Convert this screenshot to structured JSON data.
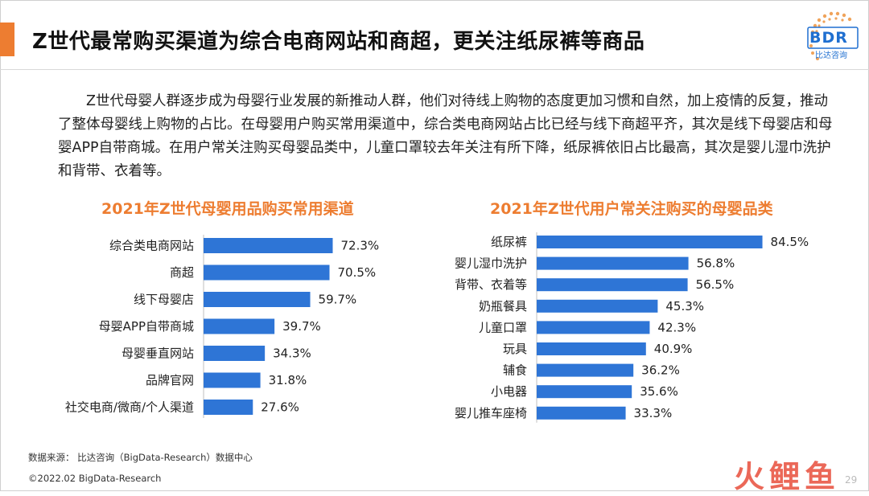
{
  "page": {
    "title": "Z世代最常购买渠道为综合电商网站和商超，更关注纸尿裤等商品",
    "logo": {
      "text": "BDR",
      "subtext": "比达咨询"
    },
    "paragraph": "Z世代母婴人群逐步成为母婴行业发展的新推动人群，他们对待线上购物的态度更加习惯和自然，加上疫情的反复，推动了整体母婴线上购物的占比。在母婴用户购买常用渠道中，综合类电商网站占比已经与线下商超平齐，其次是线下母婴店和母婴APP自带商城。在用户常关注购买母婴品类中，儿童口罩较去年关注有所下降，纸尿裤依旧占比最高，其次是婴儿湿巾洗护和背带、衣着等。",
    "source": "数据来源：  比达咨询（BigData-Research）数据中心",
    "copyright": "©2022.02 BigData-Research",
    "watermark": "火鲤鱼",
    "page_number": "29",
    "colors": {
      "accent": "#ed7d31",
      "bar": "#2e75d6",
      "logo": "#1f6fd0"
    }
  },
  "chart_data": [
    {
      "type": "bar",
      "orientation": "horizontal",
      "title": "2021年Z世代母婴用品购买常用渠道",
      "categories": [
        "综合类电商网站",
        "商超",
        "线下母婴店",
        "母婴APP自带商城",
        "母婴垂直网站",
        "品牌官网",
        "社交电商/微商/个人渠道"
      ],
      "values": [
        72.3,
        70.5,
        59.7,
        39.7,
        34.3,
        31.8,
        27.6
      ],
      "value_labels": [
        "72.3%",
        "70.5%",
        "59.7%",
        "39.7%",
        "34.3%",
        "31.8%",
        "27.6%"
      ],
      "unit": "%"
    },
    {
      "type": "bar",
      "orientation": "horizontal",
      "title": "2021年Z世代用户常关注购买的母婴品类",
      "categories": [
        "纸尿裤",
        "婴儿湿巾洗护",
        "背带、衣着等",
        "奶瓶餐具",
        "儿童口罩",
        "玩具",
        "辅食",
        "小电器",
        "婴儿推车座椅"
      ],
      "values": [
        84.5,
        56.8,
        56.5,
        45.3,
        42.3,
        40.9,
        36.2,
        35.6,
        33.3
      ],
      "value_labels": [
        "84.5%",
        "56.8%",
        "56.5%",
        "45.3%",
        "42.3%",
        "40.9%",
        "36.2%",
        "35.6%",
        "33.3%"
      ],
      "unit": "%"
    }
  ]
}
